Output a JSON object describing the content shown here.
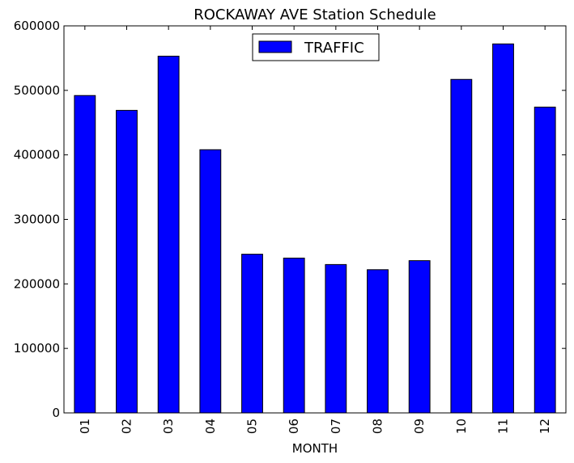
{
  "chart_data": {
    "type": "bar",
    "title": "ROCKAWAY AVE Station Schedule",
    "xlabel": "MONTH",
    "ylabel": "",
    "categories": [
      "01",
      "02",
      "03",
      "04",
      "05",
      "06",
      "07",
      "08",
      "09",
      "10",
      "11",
      "12"
    ],
    "series": [
      {
        "name": "TRAFFIC",
        "color": "#0000ff",
        "values": [
          492000,
          469000,
          553000,
          408000,
          246000,
          240000,
          230000,
          222000,
          236000,
          517000,
          572000,
          474000
        ]
      }
    ],
    "ylim": [
      0,
      600000
    ],
    "yticks": [
      0,
      100000,
      200000,
      300000,
      400000,
      500000,
      600000
    ],
    "ytick_labels": [
      "0",
      "100000",
      "200000",
      "300000",
      "400000",
      "500000",
      "600000"
    ],
    "grid": false,
    "legend_position": "top-center"
  }
}
